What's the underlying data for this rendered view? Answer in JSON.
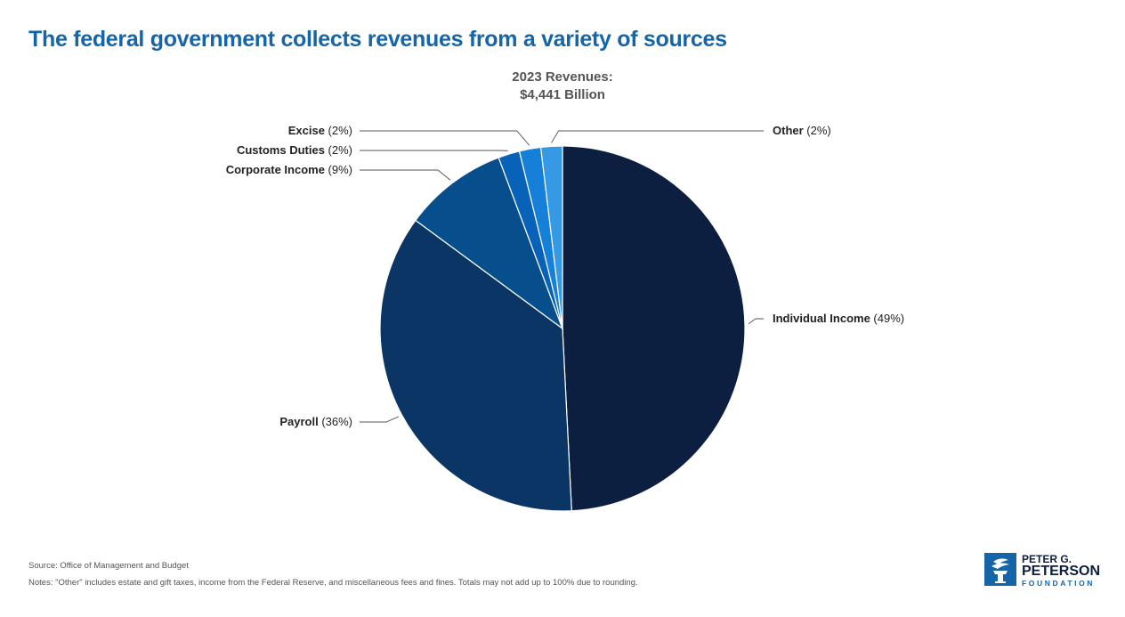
{
  "page": {
    "title": "The federal government collects revenues from a variety of sources",
    "source": "Source: Office of Management and Budget",
    "notes": "Notes: \"Other\" includes estate and gift taxes, income from the Federal Reserve, and miscellaneous fees and fines. Totals may not add up to 100% due to rounding."
  },
  "logo": {
    "line1": "PETER G.",
    "line2": "PETERSON",
    "line3": "FOUNDATION"
  },
  "chart_data": {
    "type": "pie",
    "center_label": [
      "2023 Revenues:",
      "$4,441 Billion"
    ],
    "slices": [
      {
        "name": "Individual Income",
        "pct_label": "(49%)",
        "value": 49.2,
        "color": "#0d1f40"
      },
      {
        "name": "Payroll",
        "pct_label": "(36%)",
        "value": 35.9,
        "color": "#0a3564"
      },
      {
        "name": "Corporate Income",
        "pct_label": "(9%)",
        "value": 9.2,
        "color": "#074f8c"
      },
      {
        "name": "Customs Duties",
        "pct_label": "(2%)",
        "value": 1.9,
        "color": "#0863b8"
      },
      {
        "name": "Excise",
        "pct_label": "(2%)",
        "value": 1.9,
        "color": "#1680d8"
      },
      {
        "name": "Other",
        "pct_label": "(2%)",
        "value": 1.9,
        "color": "#3699e4"
      }
    ],
    "start_angle": "12 o'clock",
    "direction": "clockwise"
  }
}
